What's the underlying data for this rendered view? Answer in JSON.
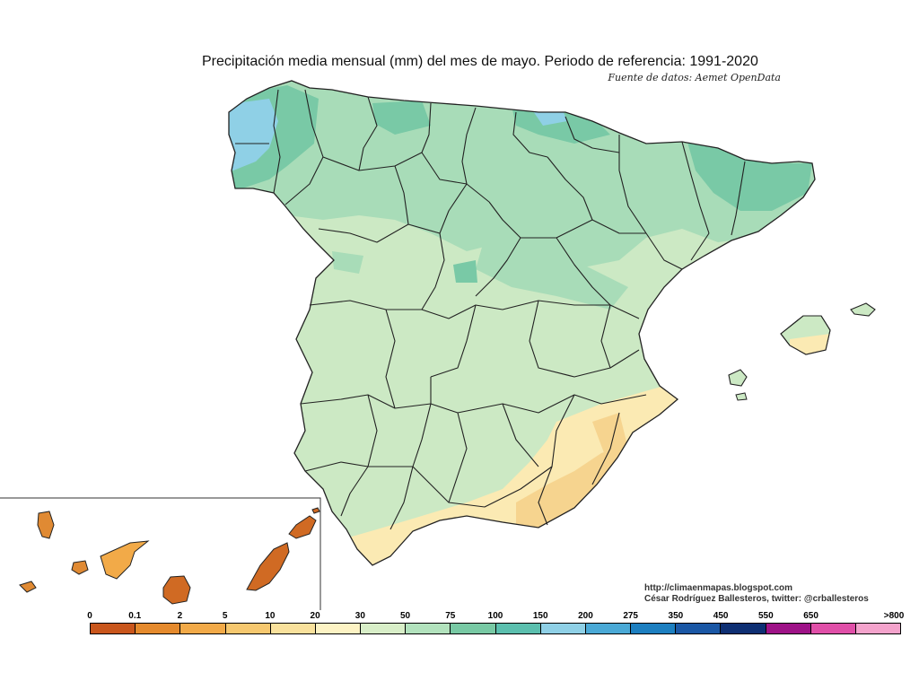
{
  "title": "Precipitación media mensual (mm) del mes de mayo. Periodo de referencia: 1991-2020",
  "source": "Fuente de datos: Aemet OpenData",
  "credits": {
    "url": "http://climaenmapas.blogspot.com",
    "author": "César Rodríguez Ballesteros, twitter: @crballesteros"
  },
  "legend": {
    "ticks": [
      "0",
      "0.1",
      "2",
      "5",
      "10",
      "20",
      "30",
      "50",
      "75",
      "100",
      "150",
      "200",
      "275",
      "350",
      "450",
      "550",
      "650",
      ">800"
    ],
    "colors": [
      "#c9561c",
      "#e58a2d",
      "#f2aa48",
      "#f6c86f",
      "#f9e19c",
      "#fdf3c4",
      "#d8eec8",
      "#b2e2bd",
      "#78c9a4",
      "#5bbfae",
      "#8fd0e6",
      "#4aa9d6",
      "#1d7fc0",
      "#1a57a5",
      "#0e2f73",
      "#9e1287",
      "#e04fa8",
      "#f4a3cc"
    ]
  },
  "map_colors": {
    "sea": "#ffffff",
    "land_base": "#cce9c4",
    "humid_north": "#a8dcb8",
    "very_humid": "#79c9a6",
    "wettest": "#8fd0e6",
    "dry_south": "#fbeab3",
    "driest_southeast": "#f6d48f",
    "canary_dry": "#e08a33",
    "canary_driest": "#d06a23",
    "borders": "#222222"
  }
}
